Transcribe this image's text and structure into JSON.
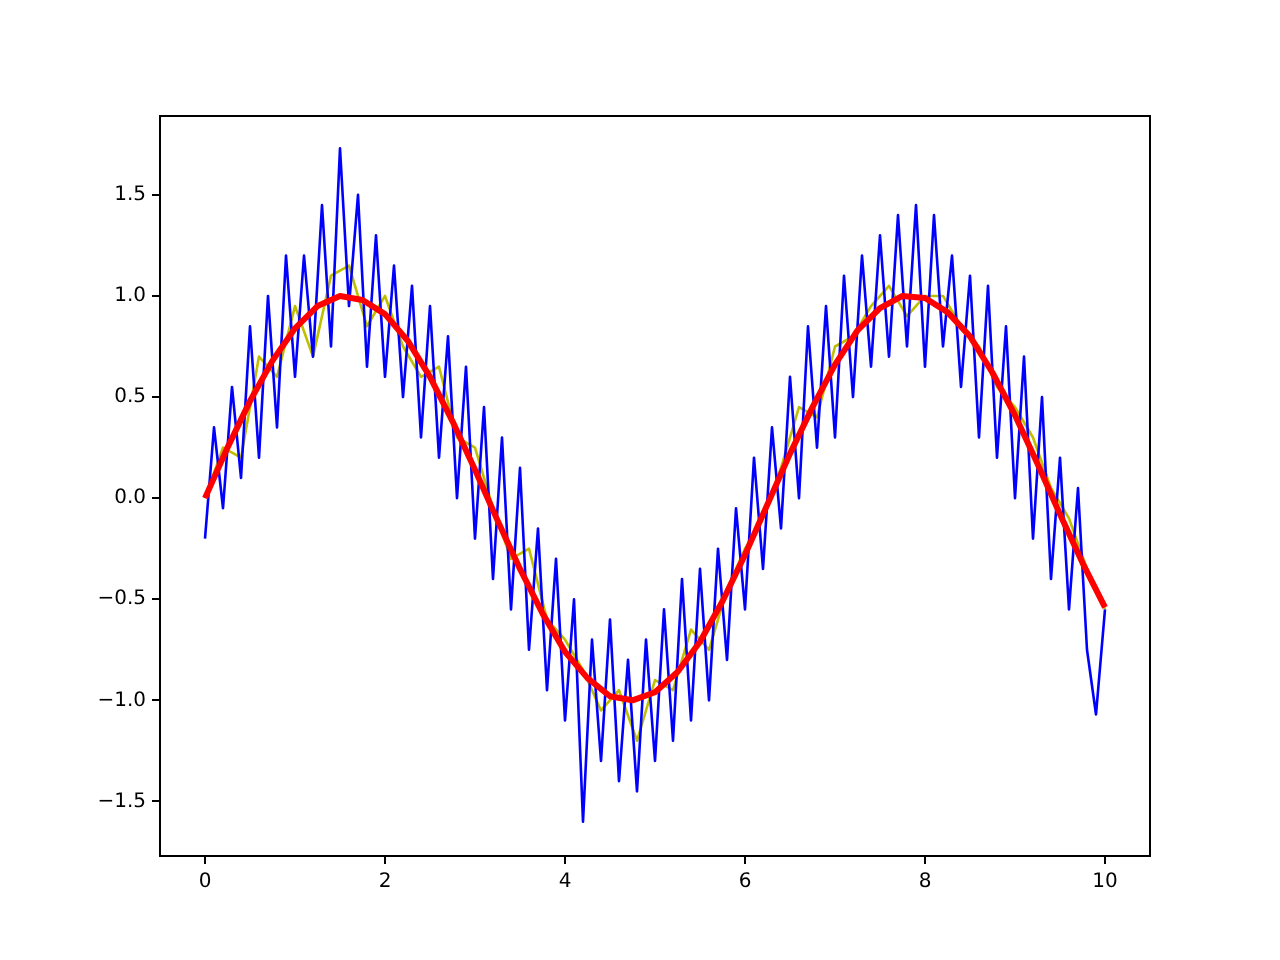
{
  "chart_data": {
    "type": "line",
    "xlim": [
      -0.5,
      10.5
    ],
    "xticks": [
      0,
      2,
      4,
      6,
      8,
      10
    ],
    "ylim": [
      -1.77,
      1.89
    ],
    "yticks": [
      {
        "value": -1.5,
        "label": "−1.5"
      },
      {
        "value": -1,
        "label": "−1.0"
      },
      {
        "value": -0.5,
        "label": "−0.5"
      },
      {
        "value": 0,
        "label": "0.0"
      },
      {
        "value": 0.5,
        "label": "0.5"
      },
      {
        "value": 1,
        "label": "1.0"
      },
      {
        "value": 1.5,
        "label": "1.5"
      }
    ],
    "series": [
      {
        "color": "#ff0000",
        "x": [
          0,
          0.25,
          0.5,
          0.75,
          1,
          1.25,
          1.5,
          1.75,
          2,
          2.25,
          2.5,
          2.75,
          3,
          3.25,
          3.5,
          3.75,
          4,
          4.25,
          4.5,
          4.75,
          5,
          5.25,
          5.5,
          5.75,
          6,
          6.25,
          6.5,
          6.75,
          7,
          7.25,
          7.5,
          7.75,
          8,
          8.25,
          8.5,
          8.75,
          9,
          9.25,
          9.5,
          9.75,
          10
        ],
        "values": [
          0,
          0.25,
          0.48,
          0.68,
          0.84,
          0.95,
          1.0,
          0.98,
          0.91,
          0.78,
          0.6,
          0.38,
          0.14,
          -0.11,
          -0.35,
          -0.57,
          -0.76,
          -0.89,
          -0.98,
          -1.0,
          -0.96,
          -0.86,
          -0.71,
          -0.51,
          -0.28,
          -0.03,
          0.22,
          0.45,
          0.66,
          0.83,
          0.94,
          1.0,
          0.99,
          0.92,
          0.8,
          0.62,
          0.41,
          0.17,
          -0.08,
          -0.32,
          -0.54
        ]
      },
      {
        "color": "#0000ff",
        "x": [
          0,
          0.1,
          0.2,
          0.3,
          0.4,
          0.5,
          0.6,
          0.7,
          0.8,
          0.9,
          1,
          1.1,
          1.2,
          1.3,
          1.4,
          1.5,
          1.6,
          1.7,
          1.8,
          1.9,
          2,
          2.1,
          2.2,
          2.3,
          2.4,
          2.5,
          2.6,
          2.7,
          2.8,
          2.9,
          3,
          3.1,
          3.2,
          3.3,
          3.4,
          3.5,
          3.6,
          3.7,
          3.8,
          3.9,
          4,
          4.1,
          4.2,
          4.3,
          4.4,
          4.5,
          4.6,
          4.7,
          4.8,
          4.9,
          5,
          5.1,
          5.2,
          5.3,
          5.4,
          5.5,
          5.6,
          5.7,
          5.8,
          5.9,
          6,
          6.1,
          6.2,
          6.3,
          6.4,
          6.5,
          6.6,
          6.7,
          6.8,
          6.9,
          7,
          7.1,
          7.2,
          7.3,
          7.4,
          7.5,
          7.6,
          7.7,
          7.8,
          7.9,
          8,
          8.1,
          8.2,
          8.3,
          8.4,
          8.5,
          8.6,
          8.7,
          8.8,
          8.9,
          9,
          9.1,
          9.2,
          9.3,
          9.4,
          9.5,
          9.6,
          9.7,
          9.8,
          9.9,
          10
        ],
        "values": [
          -0.2,
          0.35,
          -0.05,
          0.55,
          0.1,
          0.85,
          0.2,
          1.0,
          0.35,
          1.2,
          0.6,
          1.2,
          0.7,
          1.45,
          0.75,
          1.73,
          0.95,
          1.5,
          0.65,
          1.3,
          0.6,
          1.15,
          0.5,
          1.05,
          0.3,
          0.95,
          0.2,
          0.8,
          0.0,
          0.65,
          -0.2,
          0.45,
          -0.4,
          0.3,
          -0.55,
          0.15,
          -0.75,
          -0.15,
          -0.95,
          -0.3,
          -1.1,
          -0.5,
          -1.6,
          -0.7,
          -1.3,
          -0.6,
          -1.4,
          -0.8,
          -1.45,
          -0.7,
          -1.3,
          -0.55,
          -1.2,
          -0.4,
          -1.1,
          -0.35,
          -1.0,
          -0.25,
          -0.8,
          -0.05,
          -0.55,
          0.2,
          -0.35,
          0.35,
          -0.15,
          0.6,
          0.0,
          0.85,
          0.25,
          0.95,
          0.3,
          1.1,
          0.5,
          1.2,
          0.65,
          1.3,
          0.7,
          1.4,
          0.75,
          1.45,
          0.65,
          1.4,
          0.75,
          1.2,
          0.55,
          1.1,
          0.3,
          1.05,
          0.2,
          0.85,
          0.0,
          0.7,
          -0.2,
          0.5,
          -0.4,
          0.2,
          -0.55,
          0.05,
          -0.75,
          -1.07,
          -0.55
        ]
      },
      {
        "color": "#bfbf00",
        "x": [
          0,
          0.2,
          0.4,
          0.6,
          0.8,
          1,
          1.2,
          1.4,
          1.6,
          1.8,
          2,
          2.2,
          2.4,
          2.6,
          2.8,
          3,
          3.2,
          3.4,
          3.6,
          3.8,
          4,
          4.2,
          4.4,
          4.6,
          4.8,
          5,
          5.2,
          5.4,
          5.6,
          5.8,
          6,
          6.2,
          6.4,
          6.6,
          6.8,
          7,
          7.2,
          7.4,
          7.6,
          7.8,
          8,
          8.2,
          8.4,
          8.6,
          8.8,
          9,
          9.2,
          9.4,
          9.6,
          9.8,
          10
        ],
        "values": [
          0.0,
          0.25,
          0.2,
          0.7,
          0.6,
          0.95,
          0.7,
          1.1,
          1.15,
          0.85,
          1.0,
          0.75,
          0.6,
          0.65,
          0.3,
          0.25,
          -0.05,
          -0.3,
          -0.25,
          -0.6,
          -0.7,
          -0.85,
          -1.05,
          -0.95,
          -1.2,
          -0.9,
          -0.95,
          -0.65,
          -0.75,
          -0.45,
          -0.25,
          -0.1,
          0.15,
          0.45,
          0.4,
          0.75,
          0.8,
          0.95,
          1.05,
          0.9,
          1.0,
          1.0,
          0.85,
          0.75,
          0.55,
          0.45,
          0.3,
          0.05,
          -0.1,
          -0.35,
          -0.55
        ]
      }
    ]
  }
}
